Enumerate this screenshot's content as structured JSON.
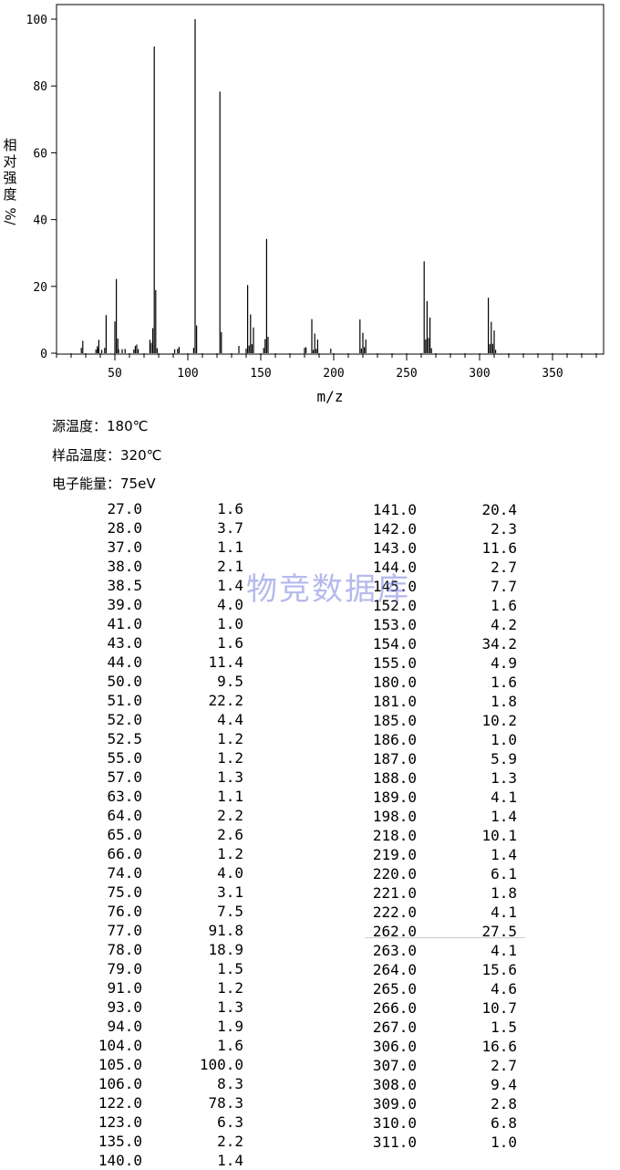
{
  "chart_data": {
    "type": "bar",
    "xlabel": "m/z",
    "ylabel_chars": [
      "相",
      "对",
      "强",
      "度",
      "%/"
    ],
    "xlim": [
      10,
      385
    ],
    "ylim": [
      0,
      100
    ],
    "xticks": [
      50,
      100,
      150,
      200,
      250,
      300,
      350
    ],
    "yticks": [
      0,
      20,
      40,
      60,
      80,
      100
    ],
    "peaks": [
      [
        27.0,
        1.6
      ],
      [
        28.0,
        3.7
      ],
      [
        37.0,
        1.1
      ],
      [
        38.0,
        2.1
      ],
      [
        38.5,
        1.4
      ],
      [
        39.0,
        4.0
      ],
      [
        41.0,
        1.0
      ],
      [
        43.0,
        1.6
      ],
      [
        44.0,
        11.4
      ],
      [
        50.0,
        9.5
      ],
      [
        51.0,
        22.2
      ],
      [
        52.0,
        4.4
      ],
      [
        52.5,
        1.2
      ],
      [
        55.0,
        1.2
      ],
      [
        57.0,
        1.3
      ],
      [
        63.0,
        1.1
      ],
      [
        64.0,
        2.2
      ],
      [
        65.0,
        2.6
      ],
      [
        66.0,
        1.2
      ],
      [
        74.0,
        4.0
      ],
      [
        75.0,
        3.1
      ],
      [
        76.0,
        7.5
      ],
      [
        77.0,
        91.8
      ],
      [
        78.0,
        18.9
      ],
      [
        79.0,
        1.5
      ],
      [
        91.0,
        1.2
      ],
      [
        93.0,
        1.3
      ],
      [
        94.0,
        1.9
      ],
      [
        104.0,
        1.6
      ],
      [
        105.0,
        100.0
      ],
      [
        106.0,
        8.3
      ],
      [
        122.0,
        78.3
      ],
      [
        123.0,
        6.3
      ],
      [
        135.0,
        2.2
      ],
      [
        140.0,
        1.4
      ],
      [
        141.0,
        20.4
      ],
      [
        142.0,
        2.3
      ],
      [
        143.0,
        11.6
      ],
      [
        144.0,
        2.7
      ],
      [
        145.0,
        7.7
      ],
      [
        152.0,
        1.6
      ],
      [
        153.0,
        4.2
      ],
      [
        154.0,
        34.2
      ],
      [
        155.0,
        4.9
      ],
      [
        180.0,
        1.6
      ],
      [
        181.0,
        1.8
      ],
      [
        185.0,
        10.2
      ],
      [
        186.0,
        1.0
      ],
      [
        187.0,
        5.9
      ],
      [
        188.0,
        1.3
      ],
      [
        189.0,
        4.1
      ],
      [
        198.0,
        1.4
      ],
      [
        218.0,
        10.1
      ],
      [
        219.0,
        1.4
      ],
      [
        220.0,
        6.1
      ],
      [
        221.0,
        1.8
      ],
      [
        222.0,
        4.1
      ],
      [
        262.0,
        27.5
      ],
      [
        263.0,
        4.1
      ],
      [
        264.0,
        15.6
      ],
      [
        265.0,
        4.6
      ],
      [
        266.0,
        10.7
      ],
      [
        267.0,
        1.5
      ],
      [
        306.0,
        16.6
      ],
      [
        307.0,
        2.7
      ],
      [
        308.0,
        9.4
      ],
      [
        309.0,
        2.8
      ],
      [
        310.0,
        6.8
      ],
      [
        311.0,
        1.0
      ]
    ],
    "grid": false,
    "legend": "none"
  },
  "meta": {
    "source_temp": "源温度：180℃",
    "sample_temp": "样品温度：320℃",
    "electron_energy": "电子能量：75eV"
  },
  "table": {
    "left": [
      [
        "27.0",
        "1.6"
      ],
      [
        "28.0",
        "3.7"
      ],
      [
        "37.0",
        "1.1"
      ],
      [
        "38.0",
        "2.1"
      ],
      [
        "38.5",
        "1.4"
      ],
      [
        "39.0",
        "4.0"
      ],
      [
        "41.0",
        "1.0"
      ],
      [
        "43.0",
        "1.6"
      ],
      [
        "44.0",
        "11.4"
      ],
      [
        "50.0",
        "9.5"
      ],
      [
        "51.0",
        "22.2"
      ],
      [
        "52.0",
        "4.4"
      ],
      [
        "52.5",
        "1.2"
      ],
      [
        "55.0",
        "1.2"
      ],
      [
        "57.0",
        "1.3"
      ],
      [
        "63.0",
        "1.1"
      ],
      [
        "64.0",
        "2.2"
      ],
      [
        "65.0",
        "2.6"
      ],
      [
        "66.0",
        "1.2"
      ],
      [
        "74.0",
        "4.0"
      ],
      [
        "75.0",
        "3.1"
      ],
      [
        "76.0",
        "7.5"
      ],
      [
        "77.0",
        "91.8"
      ],
      [
        "78.0",
        "18.9"
      ],
      [
        "79.0",
        "1.5"
      ],
      [
        "91.0",
        "1.2"
      ],
      [
        "93.0",
        "1.3"
      ],
      [
        "94.0",
        "1.9"
      ],
      [
        "104.0",
        "1.6"
      ],
      [
        "105.0",
        "100.0"
      ],
      [
        "106.0",
        "8.3"
      ],
      [
        "122.0",
        "78.3"
      ],
      [
        "123.0",
        "6.3"
      ],
      [
        "135.0",
        "2.2"
      ],
      [
        "140.0",
        "1.4"
      ]
    ],
    "right": [
      [
        "141.0",
        "20.4"
      ],
      [
        "142.0",
        "2.3"
      ],
      [
        "143.0",
        "11.6"
      ],
      [
        "144.0",
        "2.7"
      ],
      [
        "145.0",
        "7.7"
      ],
      [
        "152.0",
        "1.6"
      ],
      [
        "153.0",
        "4.2"
      ],
      [
        "154.0",
        "34.2"
      ],
      [
        "155.0",
        "4.9"
      ],
      [
        "180.0",
        "1.6"
      ],
      [
        "181.0",
        "1.8"
      ],
      [
        "185.0",
        "10.2"
      ],
      [
        "186.0",
        "1.0"
      ],
      [
        "187.0",
        "5.9"
      ],
      [
        "188.0",
        "1.3"
      ],
      [
        "189.0",
        "4.1"
      ],
      [
        "198.0",
        "1.4"
      ],
      [
        "218.0",
        "10.1"
      ],
      [
        "219.0",
        "1.4"
      ],
      [
        "220.0",
        "6.1"
      ],
      [
        "221.0",
        "1.8"
      ],
      [
        "222.0",
        "4.1"
      ],
      [
        "262.0",
        "27.5"
      ],
      [
        "263.0",
        "4.1"
      ],
      [
        "264.0",
        "15.6"
      ],
      [
        "265.0",
        "4.6"
      ],
      [
        "266.0",
        "10.7"
      ],
      [
        "267.0",
        "1.5"
      ],
      [
        "306.0",
        "16.6"
      ],
      [
        "307.0",
        "2.7"
      ],
      [
        "308.0",
        "9.4"
      ],
      [
        "309.0",
        "2.8"
      ],
      [
        "310.0",
        "6.8"
      ],
      [
        "311.0",
        "1.0"
      ]
    ]
  },
  "watermark": "物竞数据库"
}
